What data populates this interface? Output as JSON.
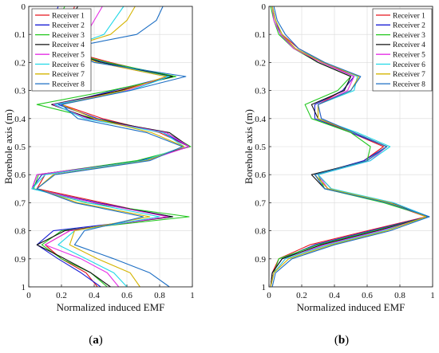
{
  "colors": {
    "Receiver 1": "#e6141c",
    "Receiver 2": "#1a1fd6",
    "Receiver 3": "#22c81e",
    "Receiver 4": "#111111",
    "Receiver 5": "#e62ee6",
    "Receiver 6": "#20d8e6",
    "Receiver 7": "#d4b400",
    "Receiver 8": "#1c6ec4"
  },
  "chart_data": [
    {
      "type": "line",
      "panel_label": "(a)",
      "panel_letter": "a",
      "xlabel": "Normalized induced EMF",
      "ylabel": "Borehole axis (m)",
      "xlim": [
        0,
        1
      ],
      "ylim": [
        0,
        1
      ],
      "y_inverted": true,
      "grid": true,
      "legend_placement": "top-left",
      "xticks": [
        "0",
        "0.2",
        "0.4",
        "0.6",
        "0.8",
        "1"
      ],
      "yticks": [
        "0",
        "0.1",
        "0.2",
        "0.3",
        "0.4",
        "0.5",
        "0.6",
        "0.7",
        "0.8",
        "0.9",
        "1"
      ],
      "y": [
        0,
        0.05,
        0.1,
        0.15,
        0.2,
        0.25,
        0.3,
        0.35,
        0.4,
        0.45,
        0.5,
        0.55,
        0.6,
        0.65,
        0.7,
        0.75,
        0.8,
        0.85,
        0.9,
        0.95,
        1
      ],
      "series": [
        {
          "name": "Receiver 1",
          "x": [
            0.28,
            0.25,
            0.2,
            0.18,
            0.5,
            0.86,
            0.55,
            0.2,
            0.45,
            0.8,
            0.98,
            0.7,
            0.1,
            0.05,
            0.45,
            0.85,
            0.25,
            0.1,
            0.2,
            0.35,
            0.42
          ]
        },
        {
          "name": "Receiver 2",
          "x": [
            0.18,
            0.15,
            0.12,
            0.15,
            0.46,
            0.86,
            0.52,
            0.18,
            0.42,
            0.82,
            0.98,
            0.68,
            0.08,
            0.02,
            0.42,
            0.88,
            0.15,
            0.05,
            0.18,
            0.32,
            0.44
          ]
        },
        {
          "name": "Receiver 3",
          "x": [
            0.22,
            0.18,
            0.14,
            0.16,
            0.48,
            0.9,
            0.5,
            0.05,
            0.4,
            0.84,
            0.99,
            0.66,
            0.06,
            0.03,
            0.35,
            0.98,
            0.2,
            0.08,
            0.2,
            0.38,
            0.48
          ]
        },
        {
          "name": "Receiver 4",
          "x": [
            0.3,
            0.25,
            0.22,
            0.2,
            0.44,
            0.88,
            0.56,
            0.14,
            0.38,
            0.86,
            0.98,
            0.7,
            0.05,
            0.02,
            0.4,
            0.88,
            0.22,
            0.05,
            0.22,
            0.38,
            0.5
          ]
        },
        {
          "name": "Receiver 5",
          "x": [
            0.45,
            0.4,
            0.35,
            0.2,
            0.42,
            0.84,
            0.6,
            0.15,
            0.36,
            0.84,
            0.98,
            0.72,
            0.05,
            0.02,
            0.4,
            0.85,
            0.25,
            0.1,
            0.32,
            0.48,
            0.55
          ]
        },
        {
          "name": "Receiver 6",
          "x": [
            0.58,
            0.52,
            0.46,
            0.22,
            0.42,
            0.86,
            0.62,
            0.16,
            0.34,
            0.82,
            0.95,
            0.7,
            0.1,
            0.02,
            0.36,
            0.8,
            0.28,
            0.18,
            0.35,
            0.52,
            0.6
          ]
        },
        {
          "name": "Receiver 7",
          "x": [
            0.65,
            0.6,
            0.5,
            0.22,
            0.42,
            0.84,
            0.58,
            0.2,
            0.4,
            0.75,
            0.95,
            0.72,
            0.15,
            0.05,
            0.3,
            0.74,
            0.28,
            0.25,
            0.42,
            0.62,
            0.68
          ]
        },
        {
          "name": "Receiver 8",
          "x": [
            0.82,
            0.78,
            0.66,
            0.22,
            0.4,
            0.96,
            0.62,
            0.2,
            0.3,
            0.72,
            0.94,
            0.74,
            0.16,
            0.05,
            0.28,
            0.7,
            0.34,
            0.28,
            0.52,
            0.74,
            0.86
          ]
        }
      ]
    },
    {
      "type": "line",
      "panel_label": "(b)",
      "panel_letter": "b",
      "xlabel": "Normalized induced EMF",
      "ylabel": "Borehole axis (m)",
      "xlim": [
        0,
        1
      ],
      "ylim": [
        0,
        1
      ],
      "y_inverted": true,
      "grid": true,
      "legend_placement": "top-right",
      "xticks": [
        "0",
        "0.2",
        "0.4",
        "0.6",
        "0.8",
        "1"
      ],
      "yticks": [
        "0",
        "0.1",
        "0.2",
        "0.3",
        "0.4",
        "0.5",
        "0.6",
        "0.7",
        "0.8",
        "0.9",
        "1"
      ],
      "y": [
        0,
        0.05,
        0.1,
        0.15,
        0.2,
        0.25,
        0.3,
        0.35,
        0.4,
        0.45,
        0.5,
        0.55,
        0.6,
        0.65,
        0.7,
        0.75,
        0.8,
        0.85,
        0.9,
        0.95,
        1
      ],
      "series": [
        {
          "name": "Receiver 1",
          "x": [
            0.02,
            0.04,
            0.08,
            0.18,
            0.34,
            0.52,
            0.45,
            0.3,
            0.3,
            0.5,
            0.7,
            0.58,
            0.3,
            0.38,
            0.72,
            0.96,
            0.6,
            0.25,
            0.06,
            0.02,
            0.01
          ]
        },
        {
          "name": "Receiver 2",
          "x": [
            0.02,
            0.04,
            0.07,
            0.16,
            0.32,
            0.52,
            0.45,
            0.28,
            0.28,
            0.5,
            0.72,
            0.58,
            0.28,
            0.36,
            0.75,
            0.97,
            0.62,
            0.28,
            0.08,
            0.02,
            0.01
          ]
        },
        {
          "name": "Receiver 3",
          "x": [
            0.01,
            0.03,
            0.06,
            0.15,
            0.3,
            0.5,
            0.42,
            0.22,
            0.26,
            0.5,
            0.62,
            0.6,
            0.3,
            0.34,
            0.7,
            0.98,
            0.64,
            0.3,
            0.06,
            0.03,
            0.01
          ]
        },
        {
          "name": "Receiver 4",
          "x": [
            0.02,
            0.04,
            0.08,
            0.16,
            0.3,
            0.5,
            0.46,
            0.26,
            0.3,
            0.52,
            0.72,
            0.6,
            0.26,
            0.34,
            0.74,
            0.98,
            0.66,
            0.32,
            0.08,
            0.02,
            0.01
          ]
        },
        {
          "name": "Receiver 5",
          "x": [
            0.02,
            0.03,
            0.07,
            0.15,
            0.32,
            0.52,
            0.48,
            0.3,
            0.32,
            0.52,
            0.72,
            0.62,
            0.3,
            0.36,
            0.76,
            0.98,
            0.68,
            0.34,
            0.1,
            0.03,
            0.01
          ]
        },
        {
          "name": "Receiver 6",
          "x": [
            0.02,
            0.04,
            0.08,
            0.16,
            0.34,
            0.54,
            0.52,
            0.3,
            0.3,
            0.54,
            0.74,
            0.62,
            0.3,
            0.38,
            0.76,
            0.98,
            0.7,
            0.36,
            0.1,
            0.03,
            0.01
          ]
        },
        {
          "name": "Receiver 7",
          "x": [
            0.02,
            0.04,
            0.08,
            0.16,
            0.33,
            0.55,
            0.5,
            0.3,
            0.3,
            0.52,
            0.72,
            0.6,
            0.28,
            0.36,
            0.74,
            0.96,
            0.72,
            0.38,
            0.12,
            0.03,
            0.01
          ]
        },
        {
          "name": "Receiver 8",
          "x": [
            0.03,
            0.05,
            0.1,
            0.18,
            0.34,
            0.56,
            0.5,
            0.3,
            0.32,
            0.52,
            0.72,
            0.6,
            0.28,
            0.34,
            0.72,
            0.98,
            0.74,
            0.4,
            0.14,
            0.04,
            0.02
          ]
        }
      ]
    }
  ]
}
